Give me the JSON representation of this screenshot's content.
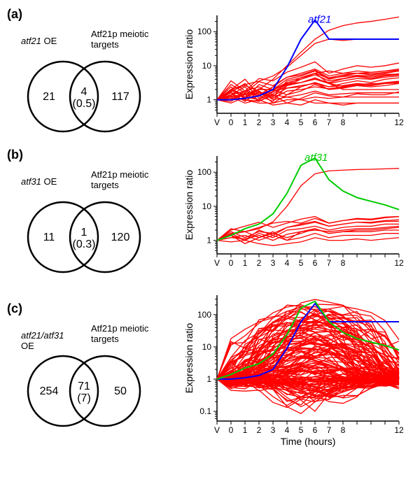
{
  "x_axis": {
    "categories": [
      "V",
      "0",
      "1",
      "2",
      "3",
      "4",
      "5",
      "6",
      "7",
      "8",
      "",
      "",
      "",
      "12"
    ],
    "title": "Time (hours)",
    "title_fontsize": 14,
    "tick_fontsize": 12
  },
  "y_axes": {
    "a": {
      "ticks": [
        "1",
        "10",
        "100"
      ],
      "values": [
        1,
        10,
        100
      ],
      "limits": [
        0.4,
        300
      ],
      "title": "Expression ratio"
    },
    "b": {
      "ticks": [
        "1",
        "10",
        "100"
      ],
      "values": [
        1,
        10,
        100
      ],
      "limits": [
        0.4,
        300
      ],
      "title": "Expression ratio"
    },
    "c": {
      "ticks": [
        "0.1",
        "1",
        "10",
        "100"
      ],
      "values": [
        0.1,
        1,
        10,
        100
      ],
      "limits": [
        0.05,
        400
      ],
      "title": "Expression ratio"
    }
  },
  "colors": {
    "red": "#ff0000",
    "blue": "#0000ff",
    "green": "#00cc00",
    "axis": "#000000",
    "bg": "#ffffff"
  },
  "panels": {
    "a": {
      "label": "(a)",
      "venn": {
        "left_label": "atf21 OE",
        "left_label_italic_end": 5,
        "right_label": "Atf21p meiotic\ntargets",
        "left_only": "21",
        "overlap": "4",
        "overlap_sub": "(0.5)",
        "right_only": "117"
      },
      "highlight_label": "atf21",
      "highlight_color": "blue",
      "highlight_series": [
        1,
        1,
        1.1,
        1.3,
        2,
        9,
        60,
        220,
        60,
        60,
        60,
        60,
        60,
        60
      ],
      "red_series": [
        [
          1,
          1.4,
          1.2,
          1.6,
          1.1,
          1.8,
          2.0,
          2.4,
          2.1,
          2.4,
          2.7,
          2.6,
          3.0,
          3.1
        ],
        [
          1,
          0.8,
          1.2,
          1.0,
          0.7,
          0.8,
          1.1,
          1.6,
          1.3,
          1.2,
          1.5,
          1.4,
          1.4,
          1.7
        ],
        [
          1,
          1.0,
          1.8,
          1.4,
          2.0,
          1.4,
          1.8,
          2.8,
          2.0,
          2.3,
          2.8,
          2.6,
          3.0,
          3.4
        ],
        [
          1,
          1.6,
          0.9,
          1.7,
          1.3,
          2.2,
          2.4,
          3.2,
          2.4,
          3.0,
          3.6,
          3.2,
          4.0,
          4.4
        ],
        [
          1,
          1.1,
          1.0,
          0.9,
          1.4,
          0.8,
          0.7,
          1.0,
          0.8,
          0.7,
          0.8,
          0.8,
          0.8,
          0.8
        ],
        [
          1,
          1.9,
          1.2,
          2.1,
          1.9,
          3.0,
          3.2,
          4.1,
          3.2,
          4.1,
          4.8,
          4.2,
          5.0,
          5.4
        ],
        [
          1,
          1.2,
          0.8,
          1.0,
          1.7,
          2.8,
          4.5,
          6.0,
          7.0,
          6.0,
          6.0,
          6.4,
          7.0,
          7.4
        ],
        [
          1,
          1.6,
          1.4,
          1.0,
          1.8,
          2.2,
          2.6,
          3.0,
          2.4,
          2.6,
          3.0,
          2.8,
          3.2,
          3.5
        ],
        [
          1,
          0.9,
          1.6,
          1.3,
          0.9,
          2.6,
          4.0,
          6.0,
          3.0,
          2.0,
          2.0,
          2.0,
          2.0,
          2.0
        ],
        [
          1,
          2.0,
          2.8,
          3.5,
          5,
          9,
          20,
          45,
          60,
          55,
          60,
          60,
          60,
          60
        ],
        [
          1,
          1.4,
          2.4,
          0.9,
          1.5,
          2.6,
          3.2,
          4.4,
          3.0,
          3.6,
          4.2,
          4.0,
          4.6,
          5.0
        ],
        [
          1,
          1.2,
          1.5,
          2.0,
          2.0,
          2.8,
          3.2,
          4.0,
          3.0,
          2.5,
          2.8,
          3.0,
          3.0,
          3.2
        ],
        [
          1,
          2.4,
          1.0,
          2.8,
          2.0,
          4.0,
          5.0,
          7.0,
          4.0,
          5.0,
          6.0,
          5.4,
          6.0,
          7.0
        ],
        [
          1,
          2.8,
          1.6,
          3.4,
          2.6,
          4.6,
          6.0,
          8.0,
          5.0,
          6.0,
          7.0,
          6.4,
          7.0,
          8.0
        ],
        [
          1,
          1.7,
          3.0,
          1.1,
          2.0,
          3.2,
          4.0,
          5.4,
          3.6,
          4.2,
          5.0,
          4.6,
          5.2,
          5.8
        ],
        [
          1,
          1.0,
          1.4,
          1.8,
          1.0,
          1.2,
          1.0,
          1.2,
          1.1,
          1.2,
          1.2,
          1.2,
          1.2,
          1.2
        ],
        [
          1,
          1.4,
          1.2,
          2.0,
          4,
          10,
          25,
          60,
          110,
          150,
          180,
          200,
          230,
          270
        ],
        [
          1,
          1.4,
          1.8,
          2.4,
          1.4,
          1.2,
          1.4,
          1.8,
          1.4,
          1.5,
          1.6,
          1.6,
          1.6,
          1.6
        ],
        [
          1,
          2.0,
          1.4,
          1.6,
          1.2,
          3.6,
          4.4,
          6.0,
          4.2,
          4.8,
          5.2,
          5.0,
          5.6,
          5.6
        ],
        [
          1,
          1.8,
          2.6,
          1.8,
          0.8,
          1.4,
          2.4,
          3.2,
          2.0,
          2.2,
          2.6,
          2.4,
          2.6,
          3.0
        ],
        [
          1,
          3.6,
          1.8,
          4.2,
          3.6,
          6.5,
          9,
          13,
          6.0,
          8.0,
          10,
          9,
          10,
          12
        ],
        [
          1,
          2.0,
          4.0,
          1.4,
          2.4,
          4.6,
          5.4,
          7.4,
          4.4,
          5.4,
          6.0,
          5.8,
          6.4,
          7.0
        ],
        [
          1,
          1.3,
          1.0,
          0.8,
          0.8,
          1.0,
          1.0,
          0.8,
          0.8,
          0.8,
          0.8,
          0.8,
          0.8,
          0.8
        ]
      ]
    },
    "b": {
      "label": "(b)",
      "venn": {
        "left_label": "atf31 OE",
        "left_label_italic_end": 5,
        "right_label": "Atf21p meiotic\ntargets",
        "left_only": "11",
        "overlap": "1",
        "overlap_sub": "(0.3)",
        "right_only": "120"
      },
      "highlight_label": "atf31",
      "highlight_color": "green",
      "highlight_series": [
        1,
        1.4,
        2.2,
        3,
        6,
        24,
        160,
        260,
        60,
        28,
        18,
        14,
        11,
        8
      ],
      "red_series": [
        [
          1,
          1.2,
          1.1,
          1.4,
          1.0,
          1.5,
          1.8,
          2.0,
          1.8,
          2.0,
          2.2,
          2.2,
          2.4,
          2.6
        ],
        [
          1,
          0.9,
          1.0,
          0.8,
          0.7,
          0.8,
          0.9,
          1.2,
          1.0,
          1.0,
          1.1,
          1.0,
          1.1,
          1.2
        ],
        [
          1,
          1.6,
          1.8,
          1.2,
          1.6,
          1.2,
          1.6,
          2.2,
          1.6,
          1.8,
          2.0,
          2.0,
          2.2,
          2.4
        ],
        [
          1,
          1.4,
          1.0,
          1.6,
          1.2,
          2.0,
          2.2,
          2.6,
          2.0,
          2.4,
          2.6,
          2.6,
          3.0,
          3.0
        ],
        [
          1,
          1.8,
          1.2,
          1.8,
          1.6,
          2.4,
          2.8,
          3.4,
          2.6,
          3.0,
          3.4,
          3.4,
          3.8,
          4.0
        ],
        [
          1,
          1.2,
          1.4,
          1.0,
          1.4,
          1.0,
          1.2,
          1.6,
          1.2,
          1.4,
          1.4,
          1.4,
          1.6,
          1.6
        ],
        [
          1,
          2.0,
          2.6,
          3.4,
          2.4,
          3.2,
          4.2,
          5.0,
          3.2,
          3.8,
          4.2,
          4.0,
          4.6,
          5.0
        ],
        [
          1,
          1.5,
          1.8,
          2.2,
          3.5,
          10,
          40,
          90,
          110,
          115,
          120,
          122,
          126,
          130
        ],
        [
          1,
          1.6,
          1.0,
          2.0,
          1.4,
          2.4,
          3.0,
          3.6,
          2.6,
          3.0,
          3.4,
          3.2,
          3.6,
          3.6
        ],
        [
          1,
          2.2,
          1.8,
          2.4,
          3.2,
          3.6,
          3.2,
          4.4,
          3.2,
          3.8,
          4.4,
          4.2,
          4.8,
          5.0
        ],
        [
          1,
          1.4,
          0.8,
          1.2,
          1.8,
          1.0,
          1.8,
          2.2,
          1.6,
          1.8,
          1.8,
          1.8,
          2.0,
          2.0
        ]
      ]
    },
    "c": {
      "label": "(c)",
      "venn": {
        "left_label": "atf21/atf31\nOE",
        "left_label_italic_end": 11,
        "right_label": "Atf21p meiotic\ntargets",
        "left_only": "254",
        "overlap": "71",
        "overlap_sub": "(7)",
        "right_only": "50"
      },
      "highlight_label": "",
      "highlight_color": "",
      "highlight_series_blue": [
        1,
        1,
        1.1,
        1.3,
        2,
        9,
        60,
        220,
        60,
        60,
        60,
        60,
        60,
        60
      ],
      "highlight_series_green": [
        1,
        1.4,
        2.2,
        3,
        6,
        24,
        160,
        260,
        60,
        28,
        18,
        14,
        11,
        8
      ],
      "dense_count": 130,
      "dense_ymin": 0.08,
      "dense_ymax": 300
    }
  }
}
